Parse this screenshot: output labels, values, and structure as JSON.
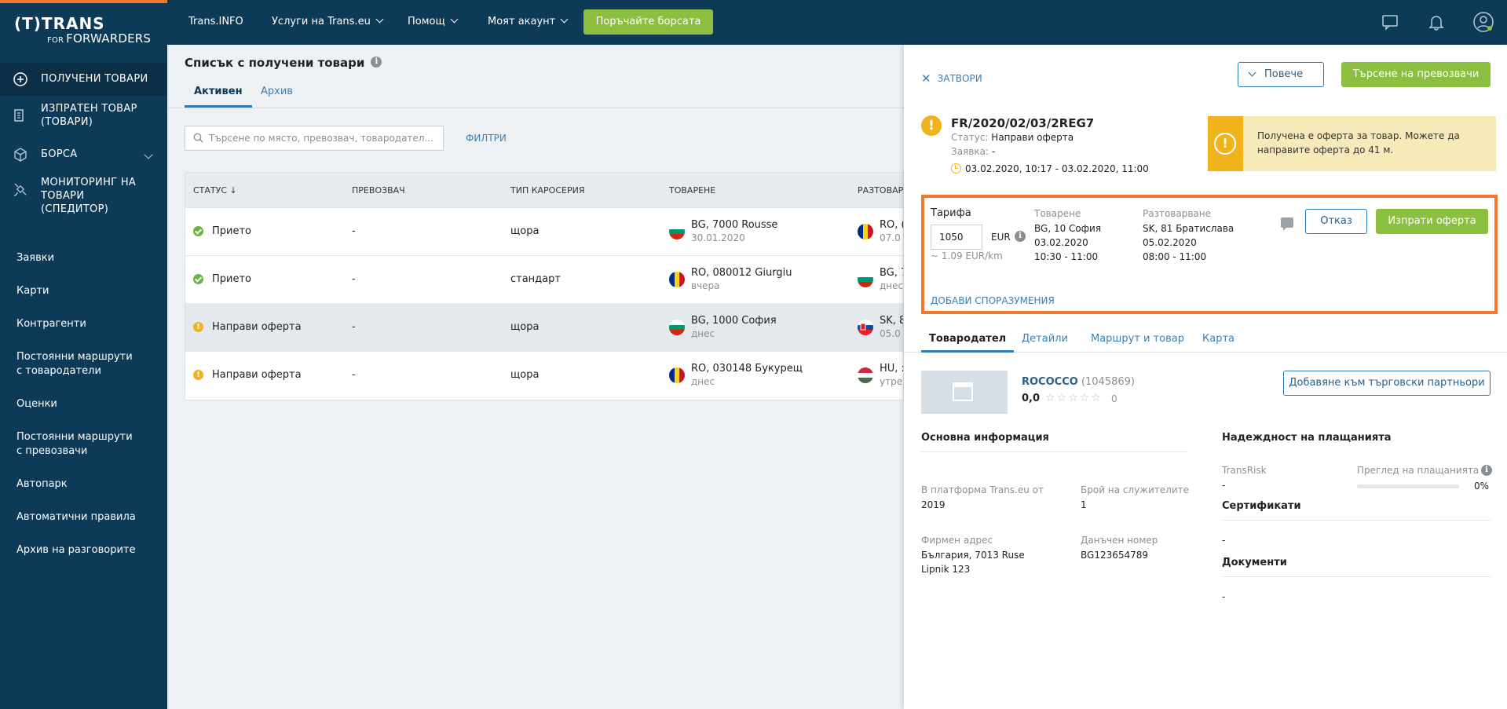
{
  "brand": {
    "logo_main": "(T)TRANS",
    "logo_sub_small": "FOR",
    "logo_sub": "FORWARDERS"
  },
  "sidebar": {
    "main_items": [
      {
        "label": "ПОЛУЧЕНИ ТОВАРИ",
        "icon": "inbox-icon"
      },
      {
        "label": "ИЗПРАТЕН ТОВАР (ТОВАРИ)",
        "icon": "sent-cargo-icon"
      },
      {
        "label": "БОРСА",
        "icon": "box-icon"
      },
      {
        "label": "МОНИТОРИНГ НА ТОВАРИ (СПЕДИТОР)",
        "icon": "satellite-icon"
      }
    ],
    "sub_items": [
      "Заявки",
      "Карти",
      "Контрагенти",
      "Постоянни маршрути с товародатели",
      "Оценки",
      "Постоянни маршрути с превозвачи",
      "Автопарк",
      "Автоматични правила",
      "Архив на разговорите"
    ]
  },
  "topbar": {
    "links": [
      "Trans.INFO",
      "Услуги на Trans.eu",
      "Помощ",
      "Моят акаунт"
    ],
    "market_button": "Поръчайте борсата",
    "icons": [
      "chat-icon",
      "bell-icon",
      "user-icon"
    ]
  },
  "main": {
    "title": "Списък с получени товари",
    "tabs": [
      "Активен",
      "Архив"
    ],
    "search_placeholder": "Търсене по място, превозвач, товародател...",
    "filters_label": "ФИЛТРИ",
    "columns": [
      "СТАТУС",
      "ПРЕВОЗВАЧ",
      "ТИП КАРОСЕРИЯ",
      "ТОВАРЕНЕ",
      "РАЗТОВАРВ"
    ],
    "rows": [
      {
        "status": "Прието",
        "status_type": "ok",
        "carrier": "-",
        "body": "щора",
        "load_flag": "BG",
        "load_place": "BG, 7000 Rousse",
        "load_date": "30.01.2020",
        "unload_flag": "RO",
        "unload_place": "RO, (",
        "unload_date": "07.0"
      },
      {
        "status": "Прието",
        "status_type": "ok",
        "carrier": "-",
        "body": "стандарт",
        "load_flag": "RO",
        "load_place": "RO, 080012 Giurgiu",
        "load_date": "вчера",
        "unload_flag": "BG",
        "unload_place": "BG, 7",
        "unload_date": "днес"
      },
      {
        "status": "Направи оферта",
        "status_type": "warn",
        "carrier": "-",
        "body": "щора",
        "load_flag": "BG",
        "load_place": "BG, 1000 София",
        "load_date": "днес",
        "unload_flag": "SK",
        "unload_place": "SK, 8",
        "unload_date": "05.0"
      },
      {
        "status": "Направи оферта",
        "status_type": "warn",
        "carrier": "-",
        "body": "щора",
        "load_flag": "RO",
        "load_place": "RO, 030148 Букурещ",
        "load_date": "днес",
        "unload_flag": "HU",
        "unload_place": "HU, :",
        "unload_date": "утре"
      }
    ]
  },
  "panel": {
    "close_label": "ЗАТВОРИ",
    "more_label": "Повече",
    "search_carriers": "Търсене на превозвачи",
    "ref": "FR/2020/02/03/2REG7",
    "status_label": "Статус:",
    "status_value": "Направи оферта",
    "order_label": "Заявка:",
    "order_value": "-",
    "time_range": "03.02.2020, 10:17 - 03.02.2020, 11:00",
    "alert": "Получена е оферта за товар. Можете да направите оферта до 41 м.",
    "offer": {
      "tarif_label": "Тарифа",
      "tarif_value": "1050",
      "currency": "EUR",
      "per_km": "~ 1.09  EUR/km",
      "load_label": "Товарене",
      "load_lines": [
        "BG, 10 София",
        "03.02.2020",
        "10:30 - 11:00"
      ],
      "unload_label": "Разтоварване",
      "unload_lines": [
        "SK, 81 Братислава",
        "05.02.2020",
        "08:00 - 11:00"
      ],
      "cancel": "Отказ",
      "send": "Изпрати оферта",
      "add_agreements": "ДОБАВИ СПОРАЗУМЕНИЯ"
    },
    "tabs": [
      "Товародател",
      "Детайли",
      "Маршрут и товар",
      "Карта"
    ],
    "company_name": "ROCOCCO",
    "company_id": "(1045869)",
    "rating": "0,0",
    "stars": "☆☆☆☆☆",
    "rating_count": "0",
    "add_partner": "Добавяне към търговски партньори",
    "basic_info_title": "Основна информация",
    "platform_since_label": "В платформа Trans.eu от",
    "platform_since_value": "2019",
    "employees_label": "Брой на служителите",
    "employees_value": "1",
    "address_label": "Фирмен адрес",
    "address_lines": [
      "България, 7013 Ruse",
      "Lipnik 123"
    ],
    "tax_label": "Данъчен номер",
    "tax_value": "BG123654789",
    "reliability_title": "Надеждност на плащанията",
    "transrisk_label": "TransRisk",
    "transrisk_value": "-",
    "payments_label": "Преглед на плащанията",
    "payments_value": "0%",
    "payments_fraction": 0,
    "certs_title": "Сертификати",
    "certs_value": "-",
    "docs_title": "Документи",
    "docs_value": "-"
  },
  "colors": {
    "navy": "#0d3a57",
    "green": "#8cbf3f",
    "orange": "#f2792b",
    "warning": "#f0b31b",
    "ok": "#6cb33f"
  }
}
